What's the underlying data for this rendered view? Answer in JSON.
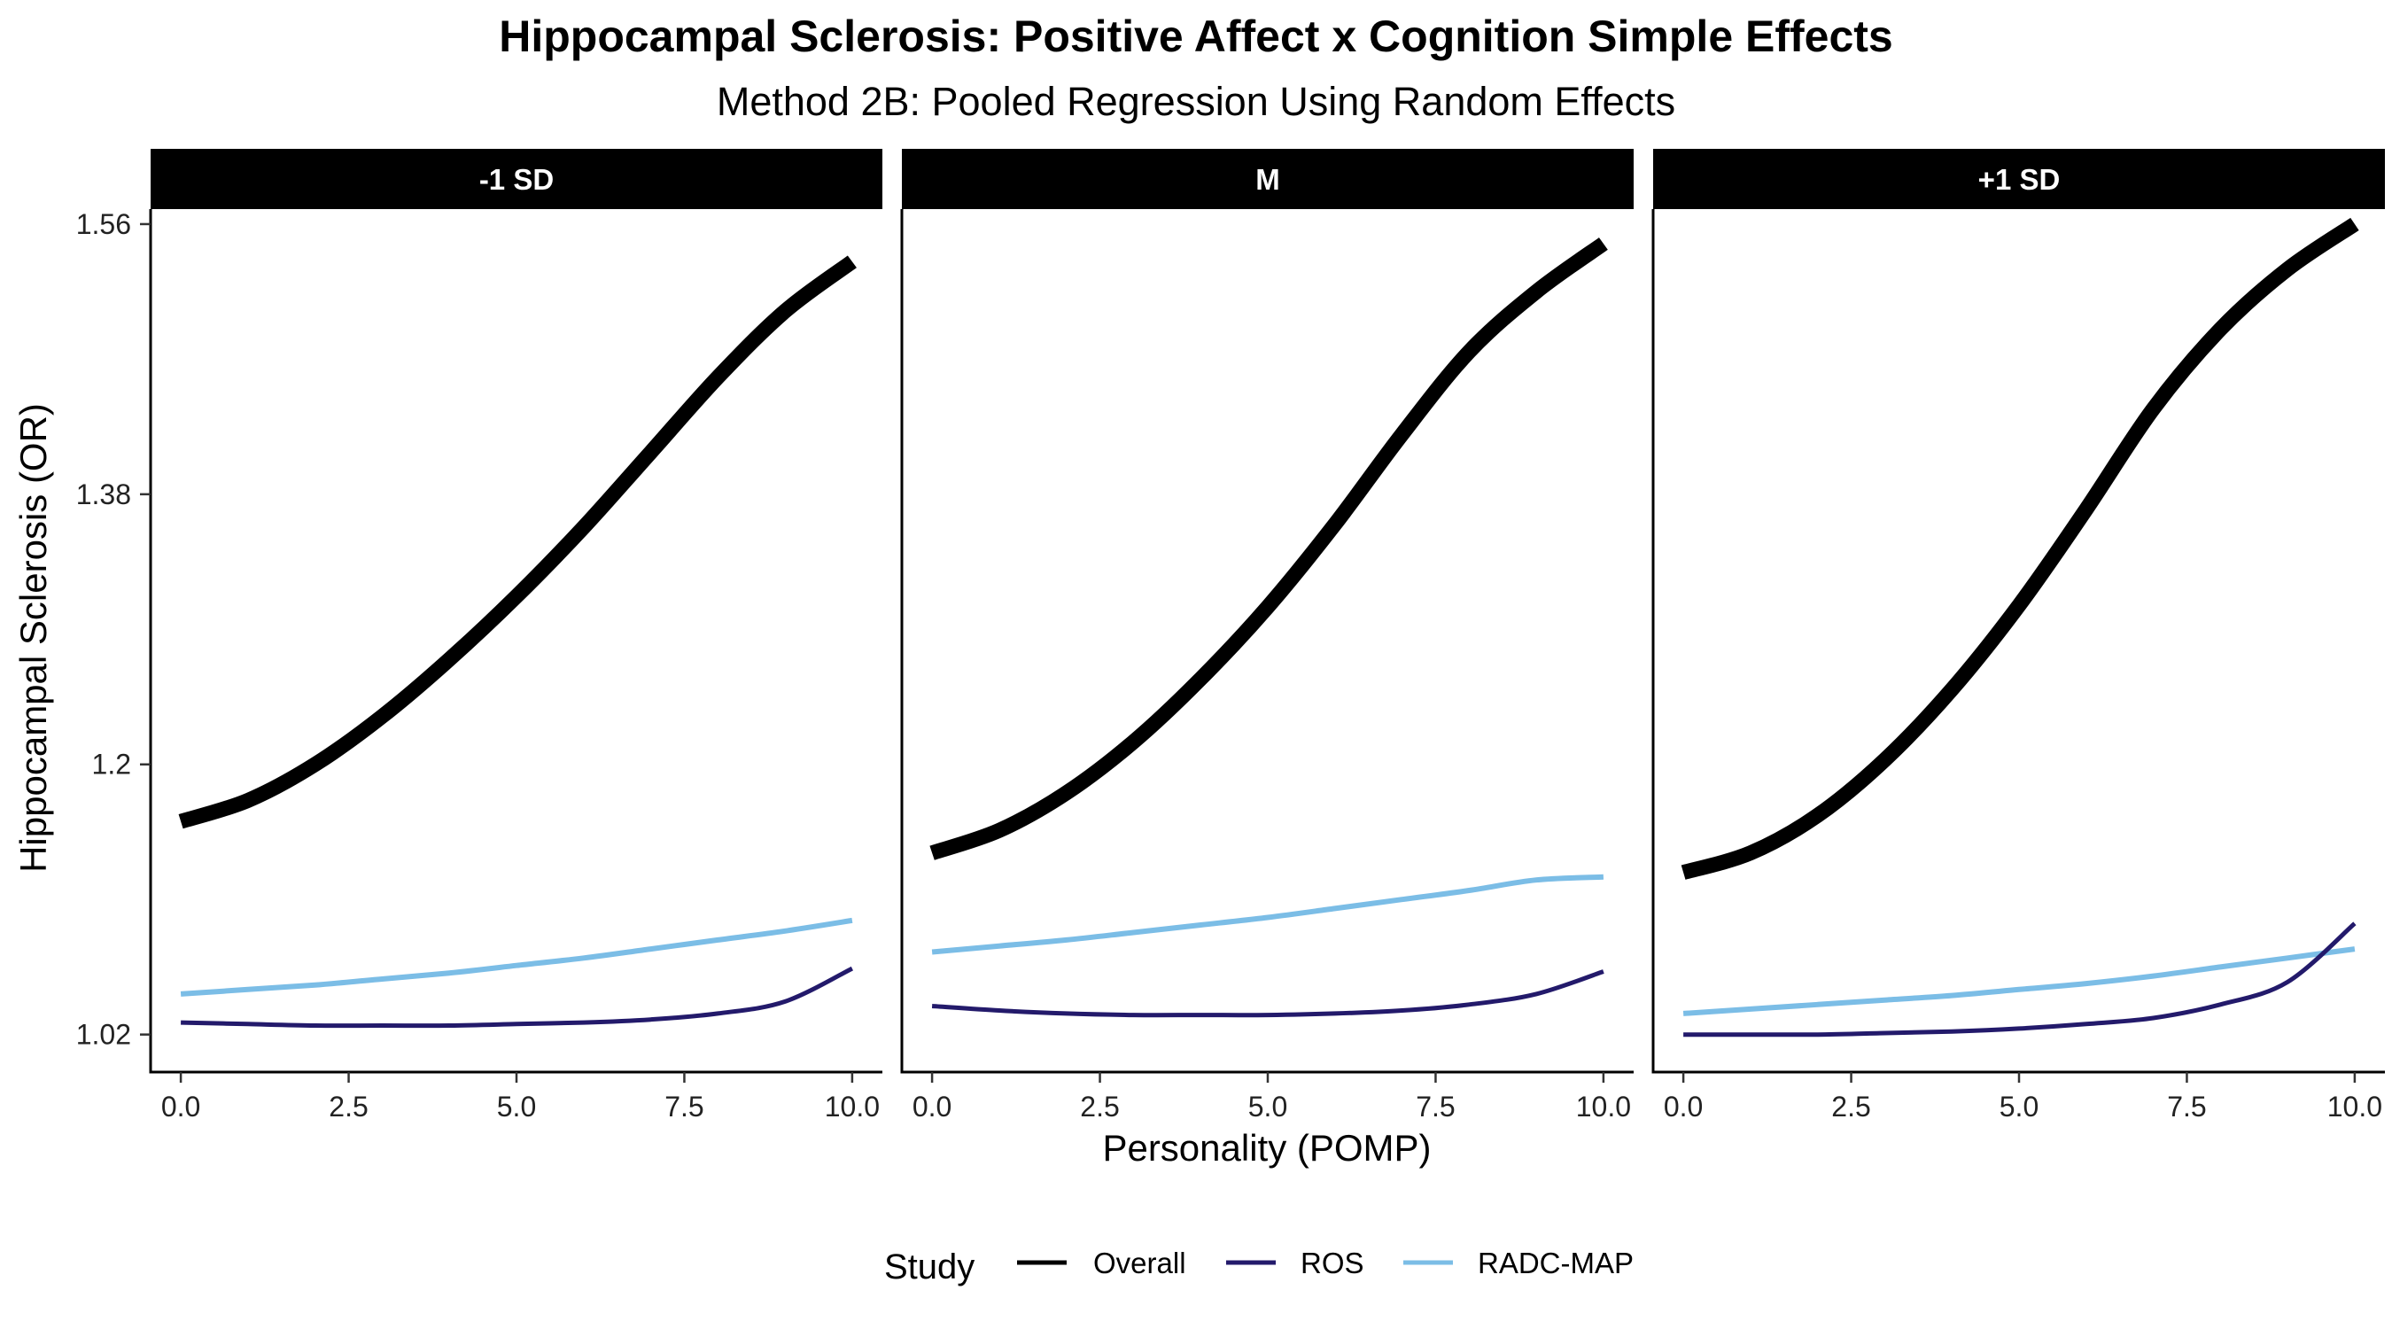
{
  "chart_data": {
    "type": "line",
    "title": "Hippocampal Sclerosis: Positive Affect x Cognition Simple Effects",
    "subtitle": "Method 2B: Pooled Regression Using Random Effects",
    "xlabel": "Personality (POMP)",
    "ylabel": "Hippocampal Sclerosis (OR)",
    "xlim": [
      -0.45,
      10.45
    ],
    "ylim": [
      0.995,
      1.57
    ],
    "x_ticks": [
      0,
      2.5,
      5,
      7.5,
      10
    ],
    "x_tick_labels": [
      "0.0",
      "2.5",
      "5.0",
      "7.5",
      "10.0"
    ],
    "y_ticks": [
      1.02,
      1.2,
      1.38,
      1.56
    ],
    "y_tick_labels": [
      "1.02",
      "1.2",
      "1.38",
      "1.56"
    ],
    "grid": false,
    "legend": {
      "title": "Study",
      "position": "bottom",
      "entries": [
        {
          "name": "Overall",
          "color": "#000000"
        },
        {
          "name": "ROS",
          "color": "#231a6b"
        },
        {
          "name": "RADC-MAP",
          "color": "#7bbde6"
        }
      ]
    },
    "panels": [
      {
        "label": "-1 SD",
        "x": [
          0,
          1,
          2,
          3,
          4,
          5,
          6,
          7,
          8,
          9,
          10
        ],
        "series": [
          {
            "name": "Overall",
            "values": [
              1.162,
              1.176,
              1.2,
              1.232,
              1.27,
              1.312,
              1.358,
              1.408,
              1.458,
              1.502,
              1.535
            ]
          },
          {
            "name": "ROS",
            "values": [
              1.028,
              1.027,
              1.026,
              1.026,
              1.026,
              1.027,
              1.028,
              1.03,
              1.034,
              1.042,
              1.064
            ]
          },
          {
            "name": "RADC-MAP",
            "values": [
              1.047,
              1.05,
              1.053,
              1.057,
              1.061,
              1.066,
              1.071,
              1.077,
              1.083,
              1.089,
              1.096
            ]
          }
        ]
      },
      {
        "label": "M",
        "x": [
          0,
          1,
          2,
          3,
          4,
          5,
          6,
          7,
          8,
          9,
          10
        ],
        "series": [
          {
            "name": "Overall",
            "values": [
              1.141,
              1.156,
              1.181,
              1.215,
              1.257,
              1.305,
              1.36,
              1.42,
              1.475,
              1.515,
              1.547
            ]
          },
          {
            "name": "ROS",
            "values": [
              1.039,
              1.036,
              1.034,
              1.033,
              1.033,
              1.033,
              1.034,
              1.036,
              1.04,
              1.047,
              1.062
            ]
          },
          {
            "name": "RADC-MAP",
            "values": [
              1.075,
              1.079,
              1.083,
              1.088,
              1.093,
              1.098,
              1.104,
              1.11,
              1.116,
              1.123,
              1.125
            ]
          }
        ]
      },
      {
        "label": "+1 SD",
        "x": [
          0,
          1,
          2,
          3,
          4,
          5,
          6,
          7,
          8,
          9,
          10
        ],
        "series": [
          {
            "name": "Overall",
            "values": [
              1.128,
              1.141,
              1.166,
              1.203,
              1.25,
              1.306,
              1.37,
              1.437,
              1.49,
              1.53,
              1.56
            ]
          },
          {
            "name": "ROS",
            "values": [
              1.02,
              1.02,
              1.02,
              1.021,
              1.022,
              1.024,
              1.027,
              1.031,
              1.04,
              1.055,
              1.094
            ]
          },
          {
            "name": "RADC-MAP",
            "values": [
              1.034,
              1.037,
              1.04,
              1.043,
              1.046,
              1.05,
              1.054,
              1.059,
              1.065,
              1.071,
              1.077
            ]
          }
        ]
      }
    ]
  }
}
